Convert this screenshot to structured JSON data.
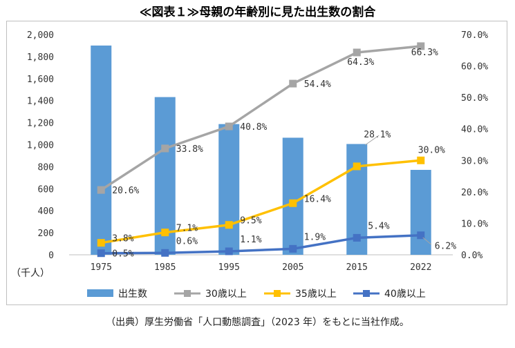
{
  "title": "≪図表１≫母親の年齢別に見た出生数の割合",
  "source": "（出典）厚生労働省「人口動態調査」（2023 年）をもとに当社作成。",
  "chart_data": {
    "type": "bar+line",
    "categories": [
      "1975",
      "1985",
      "1995",
      "2005",
      "2015",
      "2022"
    ],
    "bar_series": {
      "name": "出生数",
      "values": [
        1900,
        1432,
        1187,
        1063,
        1006,
        771
      ],
      "color": "#5b9bd5"
    },
    "line_series": [
      {
        "name": "30歳以上",
        "values": [
          20.6,
          33.8,
          40.8,
          54.4,
          64.3,
          66.3
        ],
        "labels": [
          "20.6%",
          "33.8%",
          "40.8%",
          "54.4%",
          "64.3%",
          "66.3%"
        ],
        "color": "#a5a5a5"
      },
      {
        "name": "35歳以上",
        "values": [
          3.8,
          7.1,
          9.5,
          16.4,
          28.1,
          30.0
        ],
        "labels": [
          "3.8%",
          "7.1%",
          "9.5%",
          "16.4%",
          "28.1%",
          "30.0%"
        ],
        "color": "#ffc000"
      },
      {
        "name": "40歳以上",
        "values": [
          0.5,
          0.6,
          1.1,
          1.9,
          5.4,
          6.2
        ],
        "labels": [
          "0.5%",
          "0.6%",
          "1.1%",
          "1.9%",
          "5.4%",
          "6.2%"
        ],
        "color": "#4472c4"
      }
    ],
    "y_left": {
      "label": "（千人）",
      "ylim": [
        0,
        2000
      ],
      "ticks": [
        "0",
        "200",
        "400",
        "600",
        "800",
        "1,000",
        "1,200",
        "1,400",
        "1,600",
        "1,800",
        "2,000"
      ]
    },
    "y_right": {
      "ylim": [
        0,
        70
      ],
      "ticks": [
        "0.0%",
        "10.0%",
        "20.0%",
        "30.0%",
        "40.0%",
        "50.0%",
        "60.0%",
        "70.0%"
      ]
    },
    "grid": false,
    "legend": "bottom"
  }
}
